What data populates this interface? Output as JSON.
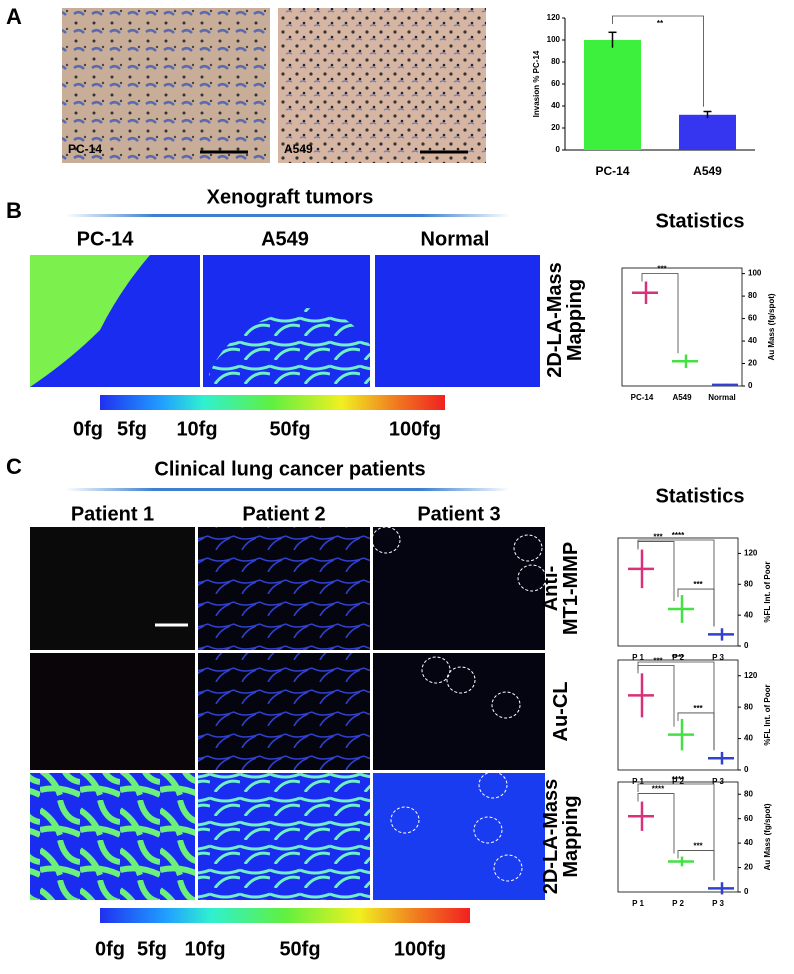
{
  "panel_a": {
    "label": "A",
    "images": [
      {
        "label": "PC-14"
      },
      {
        "label": "A549"
      }
    ],
    "chart": {
      "type": "bar",
      "ylabel": "Invasion % PC-14",
      "categories": [
        "PC-14",
        "A549"
      ],
      "values": [
        100,
        32
      ],
      "errors": [
        7,
        3
      ],
      "colors": [
        "#3ef03e",
        "#3636f0"
      ],
      "ylim": [
        0,
        120
      ],
      "yticks": [
        0,
        20,
        40,
        60,
        80,
        100,
        120
      ],
      "significance": [
        "**"
      ]
    }
  },
  "panel_b": {
    "label": "B",
    "title": "Xenograft tumors",
    "columns": [
      "PC-14",
      "A549",
      "Normal"
    ],
    "row_label": [
      "2D-LA-Mass",
      "Mapping"
    ],
    "colorbar": [
      "0fg",
      "5fg",
      "10fg",
      "50fg",
      "100fg"
    ],
    "stats_title": "Statistics",
    "chart": {
      "type": "summary",
      "ylabel": "Au Mass (fg/spot)",
      "categories": [
        "PC-14",
        "A549",
        "Normal"
      ],
      "values": [
        83,
        22,
        1
      ],
      "errors": [
        10,
        6,
        1
      ],
      "colors": [
        "#d8307a",
        "#44e044",
        "#3040d0"
      ],
      "ylim": [
        0,
        105
      ],
      "yticks": [
        0,
        20,
        40,
        60,
        80,
        100
      ],
      "significance": [
        "***"
      ]
    }
  },
  "panel_c": {
    "label": "C",
    "title": "Clinical lung cancer patients",
    "columns": [
      "Patient 1",
      "Patient 2",
      "Patient 3"
    ],
    "rows": [
      [
        "Anti-",
        "MT1-MMP"
      ],
      [
        "Au-CL"
      ],
      [
        "2D-LA-Mass",
        "Mapping"
      ]
    ],
    "colorbar": [
      "0fg",
      "5fg",
      "10fg",
      "50fg",
      "100fg"
    ],
    "stats_title": "Statistics",
    "charts": [
      {
        "type": "summary",
        "ylabel": "%FL Int. of Poor",
        "categories": [
          "P 1",
          "P 2",
          "P 3"
        ],
        "values": [
          100,
          48,
          15
        ],
        "errors": [
          25,
          18,
          8
        ],
        "colors": [
          "#d8307a",
          "#44e044",
          "#3040d0"
        ],
        "ylim": [
          0,
          140
        ],
        "yticks": [
          0,
          40,
          80,
          120
        ],
        "significance": [
          "***",
          "****",
          "***"
        ]
      },
      {
        "type": "summary",
        "ylabel": "%FL Int. of Poor",
        "categories": [
          "P 1",
          "P 2",
          "P 3"
        ],
        "values": [
          95,
          45,
          15
        ],
        "errors": [
          28,
          20,
          8
        ],
        "colors": [
          "#d8307a",
          "#44e044",
          "#3040d0"
        ],
        "ylim": [
          0,
          140
        ],
        "yticks": [
          0,
          40,
          80,
          120
        ],
        "significance": [
          "***",
          "****",
          "***"
        ]
      },
      {
        "type": "summary",
        "ylabel": "Au Mass (fg/spot)",
        "categories": [
          "P 1",
          "P 2",
          "P 3"
        ],
        "values": [
          62,
          25,
          3
        ],
        "errors": [
          12,
          4,
          5
        ],
        "colors": [
          "#d8307a",
          "#44e044",
          "#3040d0"
        ],
        "ylim": [
          0,
          90
        ],
        "yticks": [
          0,
          20,
          40,
          60,
          80
        ],
        "significance": [
          "****",
          "****",
          "***"
        ]
      }
    ]
  }
}
